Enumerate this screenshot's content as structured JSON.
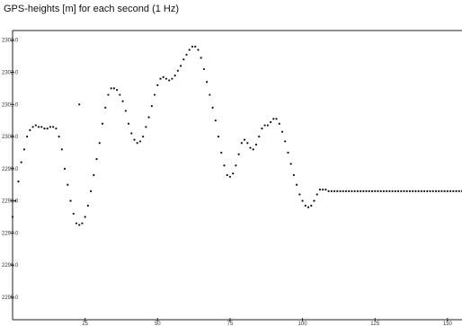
{
  "chart_data": {
    "type": "scatter",
    "title": "GPS-heights  [m] for each second (1 Hz)",
    "xlabel": "",
    "ylabel": "",
    "xlim": [
      0,
      155
    ],
    "ylim": [
      2294.3,
      2303.3
    ],
    "yticks": [
      "2303.0",
      "2302.0",
      "2301.0",
      "2300.0",
      "2299.0",
      "2298.0",
      "2297.0",
      "2296.0",
      "2295.0"
    ],
    "xticks": [
      "25",
      "50",
      "75",
      "100",
      "125",
      "150"
    ],
    "grid": false,
    "legend": "none",
    "series": [
      {
        "x": [
          0,
          1,
          2,
          3,
          4,
          5,
          6,
          7,
          8,
          9,
          10,
          11,
          12,
          13,
          14,
          15,
          16,
          17,
          18,
          19,
          20,
          21,
          22,
          23,
          24,
          25,
          26,
          27,
          28,
          29,
          30,
          31,
          32,
          33,
          34,
          35,
          36,
          37,
          38,
          39,
          40,
          41,
          42,
          43,
          44,
          45,
          46,
          47,
          48,
          49,
          50,
          51,
          52,
          53,
          54,
          55,
          56,
          57,
          58,
          59,
          60,
          61,
          62,
          63,
          64,
          65,
          66,
          67,
          68,
          69,
          70,
          71,
          72,
          73,
          74,
          75,
          76,
          77,
          78,
          79,
          80,
          81,
          82,
          83,
          84,
          85,
          86,
          87,
          88,
          89,
          90,
          91,
          92,
          93,
          94,
          95,
          96,
          97,
          98,
          99,
          100,
          101,
          102,
          103,
          104,
          105,
          106,
          107,
          108,
          109,
          110,
          111,
          112,
          113,
          114,
          115,
          116,
          117,
          118,
          119,
          120,
          121,
          122,
          123,
          124,
          125,
          126,
          127,
          128,
          129,
          130,
          131,
          132,
          133,
          134,
          135,
          136,
          137,
          138,
          139,
          140,
          141,
          142,
          143,
          144,
          145,
          146,
          147,
          148,
          149,
          150,
          151,
          152,
          153,
          154,
          155,
          23
        ],
        "y": [
          2297.5,
          2298.0,
          2298.6,
          2299.2,
          2299.6,
          2300.0,
          2300.2,
          2300.3,
          2300.35,
          2300.3,
          2300.3,
          2300.25,
          2300.25,
          2300.3,
          2300.3,
          2300.25,
          2300.0,
          2299.6,
          2299.0,
          2298.5,
          2298.0,
          2297.6,
          2297.3,
          2297.25,
          2297.3,
          2297.5,
          2297.85,
          2298.3,
          2298.8,
          2299.3,
          2299.8,
          2300.4,
          2300.9,
          2301.3,
          2301.5,
          2301.5,
          2301.45,
          2301.3,
          2301.1,
          2300.8,
          2300.4,
          2300.1,
          2299.9,
          2299.8,
          2299.85,
          2300.0,
          2300.3,
          2300.6,
          2300.95,
          2301.3,
          2301.6,
          2301.8,
          2301.85,
          2301.8,
          2301.75,
          2301.8,
          2301.9,
          2302.05,
          2302.2,
          2302.4,
          2302.55,
          2302.7,
          2302.8,
          2302.8,
          2302.7,
          2302.45,
          2302.1,
          2301.7,
          2301.3,
          2300.9,
          2300.5,
          2300.0,
          2299.5,
          2299.1,
          2298.8,
          2298.75,
          2298.85,
          2299.1,
          2299.45,
          2299.8,
          2299.9,
          2299.8,
          2299.65,
          2299.6,
          2299.75,
          2300.0,
          2300.25,
          2300.35,
          2300.35,
          2300.45,
          2300.55,
          2300.55,
          2300.4,
          2300.15,
          2299.85,
          2299.5,
          2299.15,
          2298.8,
          2298.5,
          2298.2,
          2298.0,
          2297.85,
          2297.8,
          2297.85,
          2298.0,
          2298.2,
          2298.35,
          2298.35,
          2298.35,
          2298.3,
          2298.3,
          2298.3,
          2298.3,
          2298.3,
          2298.3,
          2298.3,
          2298.3,
          2298.3,
          2298.3,
          2298.3,
          2298.3,
          2298.3,
          2298.3,
          2298.3,
          2298.3,
          2298.3,
          2298.3,
          2298.3,
          2298.3,
          2298.3,
          2298.3,
          2298.3,
          2298.3,
          2298.3,
          2298.3,
          2298.3,
          2298.3,
          2298.3,
          2298.3,
          2298.3,
          2298.3,
          2298.3,
          2298.3,
          2298.3,
          2298.3,
          2298.3,
          2298.3,
          2298.3,
          2298.3,
          2298.3,
          2298.3,
          2298.3,
          2298.3,
          2298.3,
          2298.3,
          2298.3,
          2301.0
        ]
      }
    ]
  }
}
